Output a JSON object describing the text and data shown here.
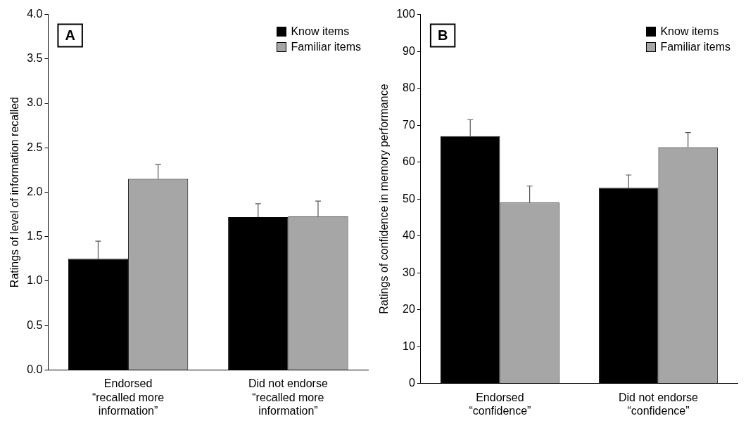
{
  "chart_data": [
    {
      "type": "bar",
      "ylabel": "Ratings of level of information recalled",
      "categories": [
        "Endorsed\n“recalled more\ninformation”",
        "Did not endorse\n“recalled more\ninformation”"
      ],
      "series": [
        {
          "name": "Know items",
          "color": "#000000",
          "values": [
            1.25,
            1.72
          ],
          "errors": [
            0.2,
            0.15
          ]
        },
        {
          "name": "Familiar items",
          "color": "#a6a6a6",
          "values": [
            2.15,
            1.73
          ],
          "errors": [
            0.16,
            0.17
          ]
        }
      ],
      "ylim": [
        0,
        4
      ],
      "yticks": [
        "0.0",
        0.5,
        "1.0",
        1.5,
        "2.0",
        2.5,
        "3.0",
        3.5,
        "4.0"
      ],
      "legend": "top right",
      "annotations": [
        "A"
      ]
    },
    {
      "type": "bar",
      "ylabel": "Ratings of confidence in memory performance",
      "categories": [
        "Endorsed\n“confidence”",
        "Did not endorse\n“confidence”"
      ],
      "series": [
        {
          "name": "Know items",
          "color": "#000000",
          "values": [
            67,
            53
          ],
          "errors": [
            4.5,
            3.5
          ]
        },
        {
          "name": "Familiar items",
          "color": "#a6a6a6",
          "values": [
            49,
            64
          ],
          "errors": [
            4.5,
            4
          ]
        }
      ],
      "ylim": [
        0,
        100
      ],
      "yticks": [
        0,
        10,
        20,
        30,
        40,
        50,
        60,
        70,
        80,
        90,
        100
      ],
      "legend": "top right",
      "annotations": [
        "B"
      ]
    }
  ]
}
